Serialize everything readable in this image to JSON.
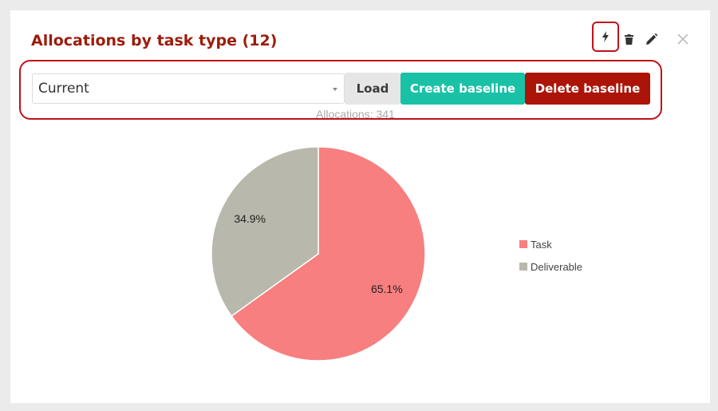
{
  "header": {
    "title": "Allocations by task type (12)",
    "icons": [
      "lightning-icon",
      "trash-icon",
      "pencil-icon",
      "close-icon"
    ]
  },
  "toolbar": {
    "select_value": "Current",
    "load_label": "Load",
    "create_label": "Create baseline",
    "delete_label": "Delete baseline"
  },
  "summary": "Allocations: 341",
  "colors": {
    "title": "#9c1c0a",
    "create": "#19c1a7",
    "delete": "#ac1407",
    "highlight": "#c0121b"
  },
  "chart_data": {
    "type": "pie",
    "categories": [
      "Task",
      "Deliverable"
    ],
    "values": [
      65.1,
      34.9
    ],
    "labels": [
      "65.1%",
      "34.9%"
    ],
    "colors": [
      "#f77f7f",
      "#b9b8ac"
    ],
    "legend": "right"
  }
}
